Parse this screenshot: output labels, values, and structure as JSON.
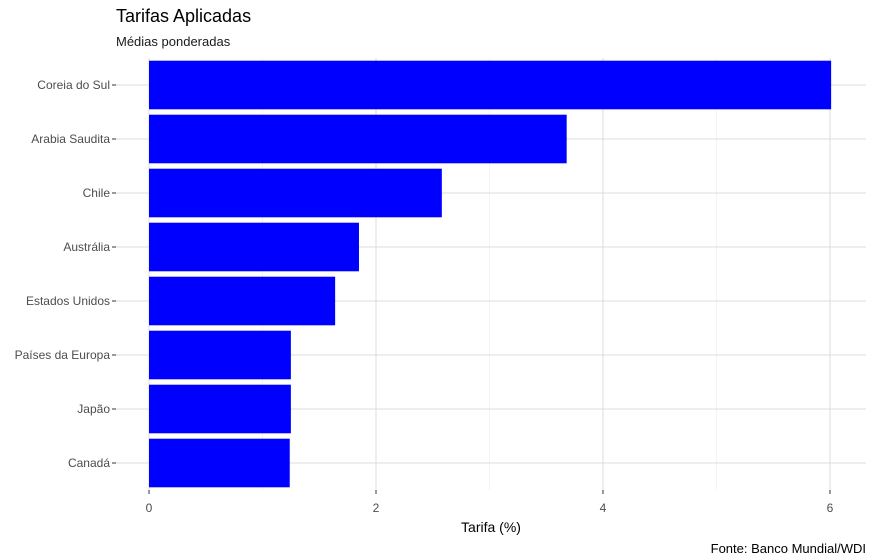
{
  "chart_data": {
    "type": "bar",
    "orientation": "horizontal",
    "title": "Tarifas Aplicadas",
    "subtitle": "Médias ponderadas",
    "caption": "Fonte: Banco Mundial/WDI",
    "xlabel": "Tarifa (%)",
    "ylabel": "",
    "categories": [
      "Coreia do Sul",
      "Arabia Saudita",
      "Chile",
      "Austrália",
      "Estados Unidos",
      "Países da Europa",
      "Japão",
      "Canadá"
    ],
    "values": [
      6.01,
      3.68,
      2.58,
      1.85,
      1.64,
      1.25,
      1.25,
      1.24
    ],
    "xlim": [
      0,
      6.3
    ],
    "xticks": [
      "0",
      "2",
      "4",
      "6"
    ],
    "bar_color": "#0000ff",
    "grid": true,
    "legend": "none"
  }
}
